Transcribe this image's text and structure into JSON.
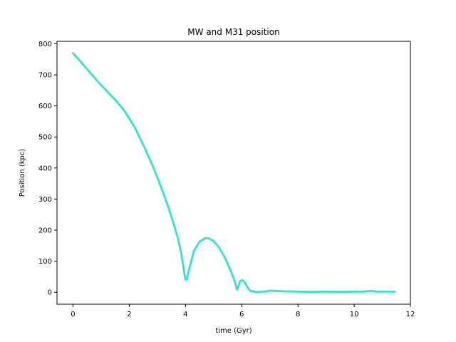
{
  "chart_data": {
    "type": "line",
    "title": "MW and M31 position",
    "xlabel": "time (Gyr)",
    "ylabel": "Position (kpc)",
    "xlim": [
      -0.57,
      12
    ],
    "ylim": [
      -38.6,
      808
    ],
    "xticks": [
      0,
      2,
      4,
      6,
      8,
      10,
      12
    ],
    "yticks": [
      0,
      100,
      200,
      300,
      400,
      500,
      600,
      700,
      800
    ],
    "grid": false,
    "series": [
      {
        "color": "#40e0d0",
        "x": [
          0,
          0.3,
          0.6,
          0.9,
          1.2,
          1.5,
          1.8,
          2.0,
          2.2,
          2.4,
          2.6,
          2.8,
          3.0,
          3.2,
          3.4,
          3.6,
          3.75,
          3.85,
          3.95,
          4.0,
          4.05,
          4.15,
          4.3,
          4.5,
          4.7,
          4.85,
          5.0,
          5.2,
          5.4,
          5.6,
          5.75,
          5.83,
          5.88,
          5.95,
          6.02,
          6.1,
          6.2,
          6.3,
          6.5,
          6.8,
          7.0,
          7.2,
          7.5,
          8.0,
          8.5,
          9.0,
          9.5,
          10.0,
          10.3,
          10.6,
          10.8,
          11.0,
          11.45
        ],
        "y": [
          770,
          740,
          708,
          677,
          648,
          620,
          588,
          560,
          530,
          493,
          455,
          414,
          370,
          322,
          272,
          215,
          168,
          125,
          68,
          40,
          42,
          82,
          133,
          163,
          174,
          173,
          165,
          143,
          112,
          72,
          36,
          9,
          18,
          36,
          39,
          34,
          17,
          5,
          1,
          2,
          5,
          4,
          3,
          2,
          1,
          2,
          1,
          2,
          2,
          4,
          2,
          2,
          2
        ]
      }
    ]
  }
}
